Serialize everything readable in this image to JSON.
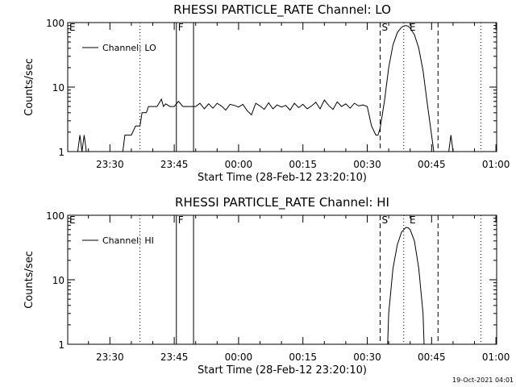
{
  "footer": {
    "timestamp": "19-Oct-2021 04:01"
  },
  "chart_data": [
    {
      "type": "line",
      "title": "RHESSI PARTICLE_RATE Channel: LO",
      "xlabel": "Start Time (28-Feb-12 23:20:10)",
      "ylabel": "Counts/sec",
      "legend": "Channel: LO",
      "legend_position": "top-left",
      "yscale": "log",
      "ylim": [
        1,
        100
      ],
      "xlim": [
        "23:20:10",
        "01:00:10"
      ],
      "xtick_labels": [
        "23:30",
        "23:45",
        "00:00",
        "00:15",
        "00:30",
        "00:45",
        "01:00"
      ],
      "ytick_labels": [
        "1",
        "10",
        "100"
      ],
      "markers": [
        {
          "label": "E",
          "time": "23:20:10",
          "style": "none"
        },
        {
          "label": "",
          "time": "23:37:00",
          "style": "dotted"
        },
        {
          "label": "F",
          "time": "23:45:30",
          "style": "solid"
        },
        {
          "label": "",
          "time": "23:49:30",
          "style": "solid"
        },
        {
          "label": "S",
          "time": "00:33:00",
          "style": "dashed"
        },
        {
          "label": "",
          "time": "00:38:30",
          "style": "dotted"
        },
        {
          "label": "E",
          "time": "00:39:30",
          "style": "none"
        },
        {
          "label": "",
          "time": "00:46:30",
          "style": "dashed"
        },
        {
          "label": "",
          "time": "00:56:30",
          "style": "dotted"
        }
      ],
      "segments": [
        [
          [
            "23:22:30",
            1
          ],
          [
            "23:23:00",
            1.8
          ],
          [
            "23:23:30",
            1
          ],
          [
            "23:24:00",
            1.8
          ],
          [
            "23:24:30",
            1
          ]
        ],
        [
          [
            "23:33:00",
            1
          ],
          [
            "23:33:30",
            1.8
          ],
          [
            "23:34:00",
            1.8
          ],
          [
            "23:35:00",
            1.8
          ],
          [
            "23:36:00",
            2.5
          ],
          [
            "23:37:00",
            2.5
          ],
          [
            "23:37:30",
            4
          ],
          [
            "23:38:30",
            4
          ],
          [
            "23:39:00",
            5
          ],
          [
            "23:40:00",
            5
          ],
          [
            "23:41:00",
            5
          ],
          [
            "23:42:00",
            6.5
          ],
          [
            "23:42:30",
            5
          ],
          [
            "23:43:00",
            5.5
          ],
          [
            "23:44:00",
            5
          ],
          [
            "23:45:00",
            5
          ],
          [
            "23:46:00",
            6
          ],
          [
            "23:47:00",
            5
          ],
          [
            "23:48:00",
            5
          ],
          [
            "23:49:00",
            5
          ],
          [
            "23:50:00",
            5
          ],
          [
            "23:51:00",
            5.6
          ],
          [
            "23:52:00",
            4.6
          ],
          [
            "23:53:00",
            5.5
          ],
          [
            "23:54:00",
            4.7
          ],
          [
            "23:55:00",
            5.6
          ],
          [
            "23:56:00",
            5.1
          ],
          [
            "23:57:00",
            4.4
          ],
          [
            "23:58:00",
            5.4
          ],
          [
            "23:59:00",
            5.2
          ],
          [
            "00:00:00",
            4.9
          ],
          [
            "00:01:00",
            5.4
          ],
          [
            "00:02:00",
            4.3
          ],
          [
            "00:03:00",
            3.7
          ],
          [
            "00:04:00",
            5.6
          ],
          [
            "00:05:00",
            5.1
          ],
          [
            "00:06:00",
            4.5
          ],
          [
            "00:07:00",
            5.7
          ],
          [
            "00:08:00",
            4.6
          ],
          [
            "00:09:00",
            5.3
          ],
          [
            "00:10:00",
            4.9
          ],
          [
            "00:11:00",
            5.2
          ],
          [
            "00:12:00",
            4.4
          ],
          [
            "00:13:00",
            5.6
          ],
          [
            "00:14:00",
            4.8
          ],
          [
            "00:15:00",
            5.4
          ],
          [
            "00:16:00",
            4.6
          ],
          [
            "00:17:00",
            5.1
          ],
          [
            "00:18:00",
            5.8
          ],
          [
            "00:19:00",
            4.6
          ],
          [
            "00:20:00",
            6.3
          ],
          [
            "00:21:00",
            5.2
          ],
          [
            "00:22:00",
            4.5
          ],
          [
            "00:23:00",
            5.9
          ],
          [
            "00:24:00",
            5.0
          ],
          [
            "00:25:00",
            5.5
          ],
          [
            "00:26:00",
            4.7
          ],
          [
            "00:27:00",
            5.6
          ],
          [
            "00:28:00",
            5.1
          ],
          [
            "00:29:00",
            5.3
          ],
          [
            "00:30:00",
            5.0
          ],
          [
            "00:31:00",
            2.5
          ],
          [
            "00:32:00",
            1.8
          ],
          [
            "00:32:30",
            1.8
          ],
          [
            "00:33:00",
            2.3
          ],
          [
            "00:34:00",
            6.0
          ],
          [
            "00:35:00",
            20
          ],
          [
            "00:36:00",
            45
          ],
          [
            "00:37:00",
            70
          ],
          [
            "00:38:00",
            85
          ],
          [
            "00:38:30",
            88
          ],
          [
            "00:39:00",
            90
          ],
          [
            "00:39:30",
            88
          ],
          [
            "00:40:00",
            82
          ],
          [
            "00:41:00",
            65
          ],
          [
            "00:42:00",
            40
          ],
          [
            "00:43:00",
            18
          ],
          [
            "00:44:00",
            5.5
          ],
          [
            "00:45:00",
            1.8
          ],
          [
            "00:45:30",
            1
          ]
        ],
        [
          [
            "00:49:00",
            1
          ],
          [
            "00:49:30",
            1.8
          ],
          [
            "00:50:00",
            1
          ]
        ]
      ]
    },
    {
      "type": "line",
      "title": "RHESSI PARTICLE_RATE Channel: HI",
      "xlabel": "Start Time (28-Feb-12 23:20:10)",
      "ylabel": "Counts/sec",
      "legend": "Channel: HI",
      "legend_position": "top-left",
      "yscale": "log",
      "ylim": [
        1,
        100
      ],
      "xlim": [
        "23:20:10",
        "01:00:10"
      ],
      "xtick_labels": [
        "23:30",
        "23:45",
        "00:00",
        "00:15",
        "00:30",
        "00:45",
        "01:00"
      ],
      "ytick_labels": [
        "1",
        "10",
        "100"
      ],
      "markers": [
        {
          "label": "E",
          "time": "23:20:10",
          "style": "none"
        },
        {
          "label": "",
          "time": "23:37:00",
          "style": "dotted"
        },
        {
          "label": "F",
          "time": "23:45:30",
          "style": "solid"
        },
        {
          "label": "",
          "time": "23:49:30",
          "style": "solid"
        },
        {
          "label": "S",
          "time": "00:33:00",
          "style": "dashed"
        },
        {
          "label": "",
          "time": "00:38:30",
          "style": "dotted"
        },
        {
          "label": "E",
          "time": "00:39:30",
          "style": "none"
        },
        {
          "label": "",
          "time": "00:46:30",
          "style": "dashed"
        },
        {
          "label": "",
          "time": "00:56:30",
          "style": "dotted"
        }
      ],
      "segments": [
        [
          [
            "00:34:45",
            1
          ],
          [
            "00:35:00",
            3
          ],
          [
            "00:36:00",
            15
          ],
          [
            "00:37:00",
            35
          ],
          [
            "00:38:00",
            55
          ],
          [
            "00:39:00",
            65
          ],
          [
            "00:39:30",
            64
          ],
          [
            "00:40:00",
            60
          ],
          [
            "00:41:00",
            40
          ],
          [
            "00:42:00",
            15
          ],
          [
            "00:43:00",
            3
          ],
          [
            "00:43:15",
            1
          ]
        ]
      ]
    }
  ]
}
